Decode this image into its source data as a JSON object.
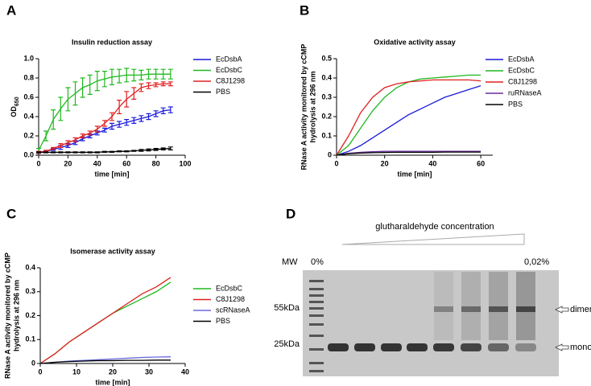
{
  "chart_data": [
    {
      "type": "line",
      "panel_label": "A",
      "title": "Insulin reduction assay",
      "ylabel": "OD",
      "ylabel_subscript": "650",
      "xlabel": "time [min]",
      "x": [
        0,
        5,
        10,
        15,
        20,
        25,
        30,
        35,
        40,
        45,
        50,
        55,
        60,
        65,
        70,
        75,
        80,
        85,
        90
      ],
      "xlim": [
        0,
        100
      ],
      "xticks": [
        0,
        20,
        40,
        60,
        80,
        100
      ],
      "ylim": [
        0,
        1
      ],
      "yticks": [
        {
          "value": 0,
          "label": "0.0"
        },
        0.2,
        0.4,
        0.6,
        0.8,
        {
          "value": 1,
          "label": "1.0"
        }
      ],
      "legend": "right",
      "series": [
        {
          "name": "EcDsbA",
          "color": "#1a1adb",
          "values": [
            0.03,
            0.04,
            0.06,
            0.08,
            0.1,
            0.13,
            0.17,
            0.2,
            0.23,
            0.26,
            0.3,
            0.32,
            0.34,
            0.36,
            0.38,
            0.4,
            0.43,
            0.46,
            0.47
          ],
          "errors": [
            0.01,
            0.01,
            0.01,
            0.02,
            0.02,
            0.02,
            0.02,
            0.02,
            0.02,
            0.02,
            0.03,
            0.03,
            0.03,
            0.03,
            0.03,
            0.03,
            0.03,
            0.03,
            0.03
          ]
        },
        {
          "name": "EcDsbC",
          "color": "#1fb81f",
          "values": [
            0.05,
            0.2,
            0.37,
            0.48,
            0.58,
            0.64,
            0.7,
            0.73,
            0.77,
            0.79,
            0.81,
            0.82,
            0.83,
            0.83,
            0.83,
            0.84,
            0.84,
            0.84,
            0.84
          ],
          "errors": [
            0.02,
            0.05,
            0.1,
            0.12,
            0.12,
            0.12,
            0.1,
            0.1,
            0.1,
            0.08,
            0.08,
            0.07,
            0.07,
            0.06,
            0.05,
            0.05,
            0.05,
            0.05,
            0.05
          ]
        },
        {
          "name": "C8J1298",
          "color": "#e02020",
          "values": [
            0.03,
            0.04,
            0.07,
            0.1,
            0.13,
            0.16,
            0.2,
            0.23,
            0.27,
            0.33,
            0.4,
            0.5,
            0.58,
            0.64,
            0.7,
            0.72,
            0.73,
            0.74,
            0.74
          ],
          "errors": [
            0.01,
            0.01,
            0.01,
            0.02,
            0.02,
            0.02,
            0.02,
            0.02,
            0.03,
            0.03,
            0.04,
            0.07,
            0.08,
            0.06,
            0.04,
            0.03,
            0.02,
            0.02,
            0.02
          ]
        },
        {
          "name": "PBS",
          "color": "#000000",
          "values": [
            0.03,
            0.03,
            0.03,
            0.03,
            0.03,
            0.03,
            0.03,
            0.03,
            0.03,
            0.035,
            0.035,
            0.04,
            0.04,
            0.045,
            0.05,
            0.055,
            0.06,
            0.065,
            0.07
          ],
          "errors": [
            0.005,
            0.005,
            0.005,
            0.005,
            0.005,
            0.005,
            0.005,
            0.005,
            0.005,
            0.005,
            0.005,
            0.005,
            0.005,
            0.005,
            0.01,
            0.01,
            0.01,
            0.01,
            0.015
          ]
        }
      ]
    },
    {
      "type": "line",
      "panel_label": "B",
      "title": "Oxidative activity assay",
      "ylabel_lines": [
        "RNase A activity monitored by cCMP",
        "hydrolysis at 296 nm"
      ],
      "xlabel": "time [min]",
      "x": [
        0,
        5,
        10,
        15,
        20,
        25,
        30,
        35,
        40,
        45,
        50,
        55,
        60
      ],
      "xlim": [
        0,
        65
      ],
      "xticks": [
        0,
        20,
        40,
        60
      ],
      "ylim": [
        0,
        0.5
      ],
      "yticks": [
        0,
        0.1,
        0.2,
        0.3,
        0.4,
        0.5
      ],
      "legend": "right",
      "series": [
        {
          "name": "EcDsbA",
          "color": "#1a1adb",
          "values": [
            0,
            0.02,
            0.05,
            0.09,
            0.13,
            0.17,
            0.21,
            0.24,
            0.27,
            0.3,
            0.32,
            0.34,
            0.36
          ]
        },
        {
          "name": "EcDsbC",
          "color": "#1fb81f",
          "values": [
            0,
            0.05,
            0.14,
            0.23,
            0.3,
            0.35,
            0.38,
            0.395,
            0.4,
            0.405,
            0.41,
            0.415,
            0.415
          ]
        },
        {
          "name": "C8J1298",
          "color": "#e02020",
          "values": [
            0,
            0.1,
            0.22,
            0.3,
            0.35,
            0.37,
            0.38,
            0.385,
            0.39,
            0.39,
            0.39,
            0.39,
            0.385
          ]
        },
        {
          "name": "ruRNaseA",
          "color": "#6a2ca0",
          "values": [
            0,
            0.01,
            0.015,
            0.018,
            0.02,
            0.02,
            0.02,
            0.02,
            0.02,
            0.02,
            0.02,
            0.02,
            0.02
          ]
        },
        {
          "name": "PBS",
          "color": "#000000",
          "values": [
            0,
            0.008,
            0.011,
            0.013,
            0.014,
            0.015,
            0.015,
            0.015,
            0.015,
            0.016,
            0.016,
            0.016,
            0.016
          ]
        }
      ]
    },
    {
      "type": "line",
      "panel_label": "C",
      "title": "Isomerase activity assay",
      "ylabel_lines": [
        "RNase A activity monitored by cCMP",
        "hydrolysis at 296 nm"
      ],
      "xlabel": "time [min]",
      "x": [
        0,
        4,
        8,
        12,
        16,
        20,
        24,
        28,
        32,
        36
      ],
      "xlim": [
        0,
        40
      ],
      "xticks": [
        0,
        10,
        20,
        30,
        40
      ],
      "ylim": [
        0,
        0.4
      ],
      "yticks": [
        0,
        0.1,
        0.2,
        0.3,
        0.4
      ],
      "legend": "right",
      "series": [
        {
          "name": "EcDsbC",
          "color": "#1fb81f",
          "values": [
            0,
            0.04,
            0.09,
            0.13,
            0.17,
            0.21,
            0.24,
            0.27,
            0.3,
            0.34
          ]
        },
        {
          "name": "C8J1298",
          "color": "#e02020",
          "values": [
            0,
            0.04,
            0.09,
            0.13,
            0.17,
            0.21,
            0.25,
            0.29,
            0.32,
            0.36
          ]
        },
        {
          "name": "scRNaseA",
          "color": "#6a6ae0",
          "values": [
            0,
            0.005,
            0.01,
            0.013,
            0.016,
            0.019,
            0.022,
            0.025,
            0.027,
            0.028
          ]
        },
        {
          "name": "PBS",
          "color": "#000000",
          "values": [
            0,
            0.005,
            0.008,
            0.01,
            0.012,
            0.012,
            0.013,
            0.013,
            0.014,
            0.014
          ]
        }
      ]
    }
  ],
  "gel": {
    "panel_label": "D",
    "title": "glutharaldehyde concentration",
    "mw_label": "MW",
    "start_label": "0%",
    "end_label": "0,02%",
    "size_labels": [
      "55kDa",
      "25kDa"
    ],
    "band_labels": [
      "dimeric",
      "monomeric"
    ]
  }
}
